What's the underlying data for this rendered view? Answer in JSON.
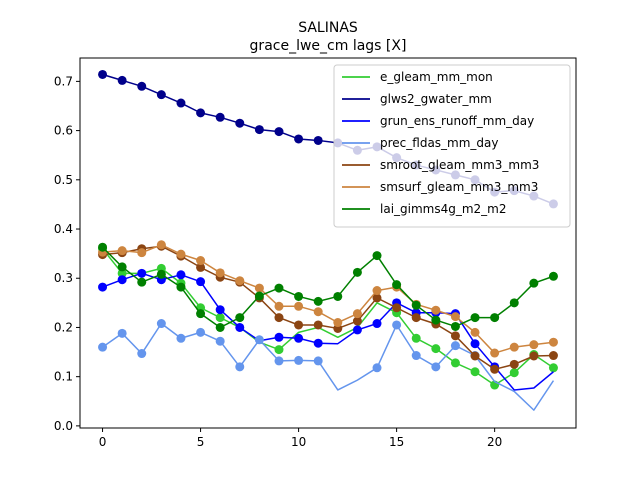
{
  "chart_data": {
    "type": "line",
    "title": "SALINAS",
    "subtitle": "grace_lwe_cm lags [X]",
    "xlabel": "",
    "ylabel": "",
    "xlim": [
      -1.15,
      24.15
    ],
    "ylim": [
      -0.0043,
      0.7475
    ],
    "xticks": [
      0,
      5,
      10,
      15,
      20
    ],
    "yticks": [
      0.0,
      0.1,
      0.2,
      0.3,
      0.4,
      0.5,
      0.6,
      0.7
    ],
    "ytick_labels": [
      "0.0",
      "0.1",
      "0.2",
      "0.3",
      "0.4",
      "0.5",
      "0.6",
      "0.7"
    ],
    "legend_position": "top-right",
    "x": [
      0,
      1,
      2,
      3,
      4,
      5,
      6,
      7,
      8,
      9,
      10,
      11,
      12,
      13,
      14,
      15,
      16,
      17,
      18,
      19,
      20,
      21,
      22,
      23
    ],
    "series": [
      {
        "name": "e_gleam_mm_mon",
        "color": "#32cd32",
        "values": [
          0.36,
          0.31,
          0.31,
          0.32,
          0.29,
          0.24,
          0.22,
          0.2,
          0.17,
          0.155,
          0.19,
          0.2,
          0.18,
          0.2,
          0.25,
          0.23,
          0.178,
          0.157,
          0.128,
          0.11,
          0.083,
          0.108,
          0.145,
          0.118
        ],
        "markers": [
          true,
          true,
          false,
          true,
          true,
          true,
          true,
          false,
          false,
          true,
          false,
          false,
          false,
          false,
          false,
          true,
          true,
          true,
          true,
          true,
          true,
          true,
          true,
          true
        ]
      },
      {
        "name": "glws2_gwater_mm",
        "color": "#00008b",
        "values": [
          0.714,
          0.702,
          0.69,
          0.673,
          0.656,
          0.636,
          0.627,
          0.615,
          0.602,
          0.598,
          0.583,
          0.58,
          0.575,
          0.56,
          0.567,
          0.545,
          0.53,
          0.52,
          0.51,
          0.5,
          0.475,
          0.478,
          0.467,
          0.451
        ],
        "markers": [
          true,
          true,
          true,
          true,
          true,
          true,
          true,
          true,
          true,
          true,
          true,
          true,
          true,
          true,
          true,
          true,
          true,
          true,
          true,
          true,
          true,
          true,
          true,
          true
        ]
      },
      {
        "name": "grun_ens_runoff_mm_day",
        "color": "#0000ff",
        "values": [
          0.282,
          0.297,
          0.31,
          0.297,
          0.307,
          0.293,
          0.236,
          0.2,
          0.173,
          0.18,
          0.178,
          0.168,
          0.167,
          0.195,
          0.208,
          0.25,
          0.23,
          0.23,
          0.228,
          0.167,
          0.12,
          0.073,
          0.077,
          0.11
        ],
        "markers": [
          true,
          true,
          true,
          true,
          true,
          true,
          true,
          true,
          false,
          true,
          true,
          true,
          false,
          true,
          true,
          true,
          true,
          true,
          true,
          true,
          true,
          false,
          false,
          false
        ]
      },
      {
        "name": "prec_fldas_mm_day",
        "color": "#6495ed",
        "values": [
          0.16,
          0.188,
          0.147,
          0.208,
          0.178,
          0.19,
          0.172,
          0.12,
          0.175,
          0.132,
          0.133,
          0.132,
          0.073,
          0.093,
          0.118,
          0.205,
          0.143,
          0.12,
          0.163,
          0.143,
          0.09,
          0.07,
          0.032,
          0.092
        ],
        "markers": [
          true,
          true,
          true,
          true,
          true,
          true,
          true,
          true,
          true,
          true,
          true,
          true,
          false,
          false,
          true,
          true,
          true,
          true,
          true,
          true,
          false,
          false,
          false,
          false
        ]
      },
      {
        "name": "smroot_gleam_mm3_mm3",
        "color": "#8b4513",
        "values": [
          0.348,
          0.352,
          0.36,
          0.365,
          0.345,
          0.322,
          0.302,
          0.292,
          0.26,
          0.22,
          0.205,
          0.205,
          0.198,
          0.213,
          0.26,
          0.24,
          0.22,
          0.207,
          0.183,
          0.142,
          0.115,
          0.125,
          0.142,
          0.143
        ],
        "markers": [
          true,
          true,
          true,
          true,
          true,
          true,
          true,
          true,
          true,
          true,
          true,
          true,
          true,
          true,
          true,
          true,
          true,
          true,
          true,
          true,
          true,
          true,
          true,
          true
        ]
      },
      {
        "name": "smsurf_gleam_mm3_mm3",
        "color": "#cd853f",
        "values": [
          0.353,
          0.356,
          0.352,
          0.368,
          0.349,
          0.336,
          0.311,
          0.295,
          0.28,
          0.243,
          0.243,
          0.232,
          0.21,
          0.228,
          0.275,
          0.282,
          0.247,
          0.235,
          0.222,
          0.19,
          0.148,
          0.16,
          0.165,
          0.17
        ],
        "markers": [
          true,
          true,
          true,
          true,
          true,
          true,
          true,
          true,
          true,
          true,
          true,
          true,
          true,
          true,
          true,
          true,
          true,
          true,
          true,
          true,
          true,
          true,
          true,
          true
        ]
      },
      {
        "name": "lai_gimms4g_m2_m2",
        "color": "#008000",
        "values": [
          0.363,
          0.323,
          0.292,
          0.308,
          0.282,
          0.228,
          0.2,
          0.22,
          0.264,
          0.28,
          0.263,
          0.253,
          0.263,
          0.312,
          0.346,
          0.287,
          0.245,
          0.215,
          0.202,
          0.22,
          0.22,
          0.25,
          0.29,
          0.304
        ],
        "markers": [
          true,
          true,
          true,
          true,
          true,
          true,
          true,
          true,
          true,
          true,
          true,
          true,
          true,
          true,
          true,
          true,
          true,
          true,
          true,
          true,
          true,
          true,
          true,
          true
        ]
      }
    ]
  }
}
